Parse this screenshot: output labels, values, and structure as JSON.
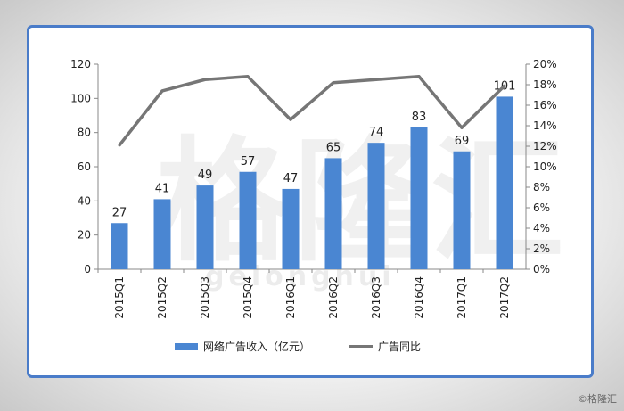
{
  "watermark": {
    "cn": "格隆汇",
    "latin": "gelonghui"
  },
  "credit": "©格隆汇",
  "colors": {
    "bar": "#4a86d2",
    "line": "#767676",
    "frame": "#4a7cc9"
  },
  "chart_data": {
    "type": "bar",
    "categories": [
      "2015Q1",
      "2015Q2",
      "2015Q3",
      "2015Q4",
      "2016Q1",
      "2016Q2",
      "2016Q3",
      "2016Q4",
      "2017Q1",
      "2017Q2"
    ],
    "series": [
      {
        "name": "网络广告收入（亿元）",
        "type": "bar",
        "axis": "left",
        "values": [
          27,
          41,
          49,
          57,
          47,
          65,
          74,
          83,
          69,
          101
        ]
      },
      {
        "name": "广告同比",
        "type": "line",
        "axis": "right",
        "values": [
          12.1,
          17.4,
          18.5,
          18.8,
          14.6,
          18.2,
          18.5,
          18.8,
          13.8,
          17.9
        ]
      }
    ],
    "ylim": [
      0,
      120
    ],
    "yticks": [
      "0",
      "20",
      "40",
      "60",
      "80",
      "100",
      "120"
    ],
    "y2lim": [
      0,
      20
    ],
    "y2ticks": [
      "0%",
      "2%",
      "4%",
      "6%",
      "8%",
      "10%",
      "12%",
      "14%",
      "16%",
      "18%",
      "20%"
    ],
    "grid": false,
    "legend": "bottom"
  }
}
